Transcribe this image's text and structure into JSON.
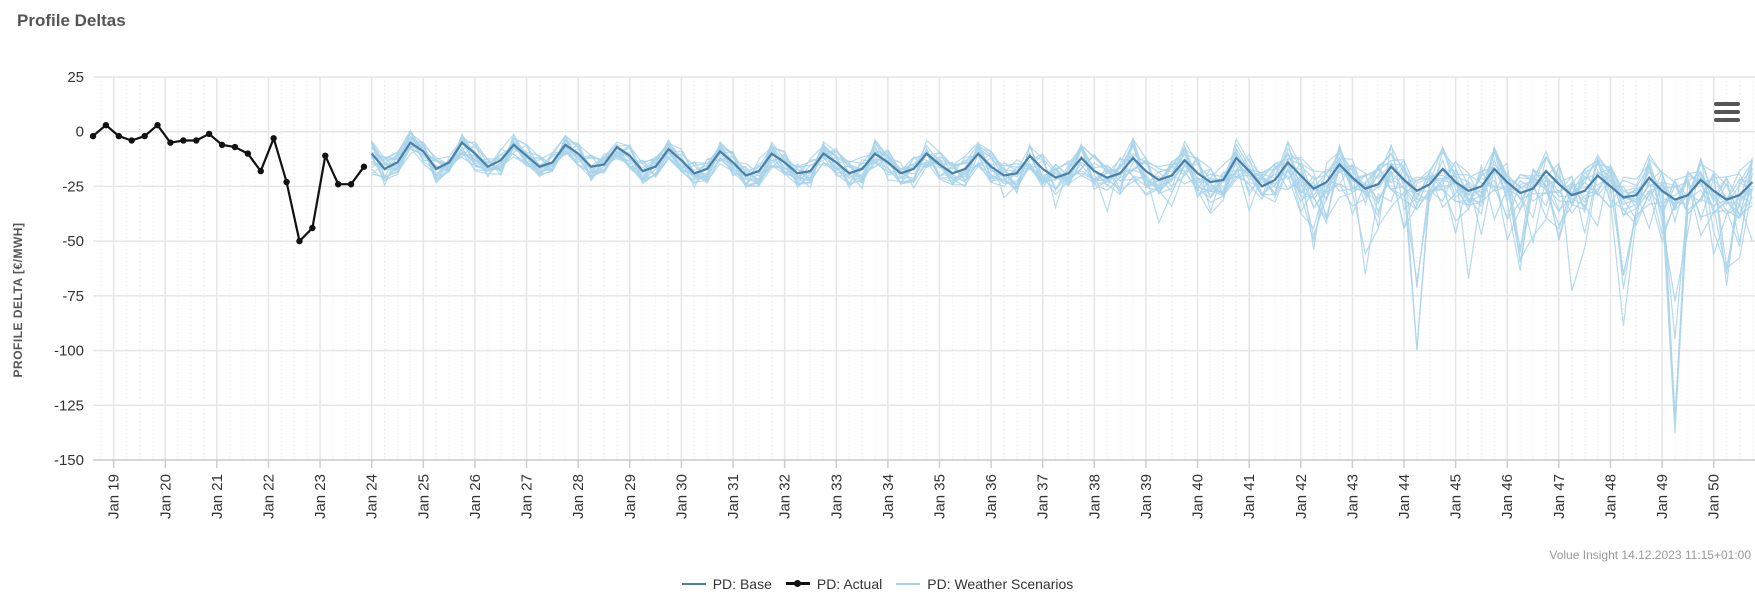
{
  "title": "Profile Deltas",
  "credits": "Volue Insight 14.12.2023 11:15+01:00",
  "menu_icon": "hamburger-menu-icon",
  "colors": {
    "base": "#4a7fa6",
    "actual": "#111111",
    "scenarios": "#a9d3ea",
    "grid": "#e6e6e6",
    "axis_label": "#555555"
  },
  "chart_data": {
    "type": "line",
    "title": "Profile Deltas",
    "xlabel": "",
    "ylabel": "PROFILE DELTA [€/MWH]",
    "ylim": [
      -150,
      25
    ],
    "yticks": [
      25,
      0,
      -25,
      -50,
      -75,
      -100,
      -125,
      -150
    ],
    "xlim": [
      18.6,
      50.8
    ],
    "xticks": [
      {
        "value": 19,
        "label": "Jan 19"
      },
      {
        "value": 20,
        "label": "Jan 20"
      },
      {
        "value": 21,
        "label": "Jan 21"
      },
      {
        "value": 22,
        "label": "Jan 22"
      },
      {
        "value": 23,
        "label": "Jan 23"
      },
      {
        "value": 24,
        "label": "Jan 24"
      },
      {
        "value": 25,
        "label": "Jan 25"
      },
      {
        "value": 26,
        "label": "Jan 26"
      },
      {
        "value": 27,
        "label": "Jan 27"
      },
      {
        "value": 28,
        "label": "Jan 28"
      },
      {
        "value": 29,
        "label": "Jan 29"
      },
      {
        "value": 30,
        "label": "Jan 30"
      },
      {
        "value": 31,
        "label": "Jan 31"
      },
      {
        "value": 32,
        "label": "Jan 32"
      },
      {
        "value": 33,
        "label": "Jan 33"
      },
      {
        "value": 34,
        "label": "Jan 34"
      },
      {
        "value": 35,
        "label": "Jan 35"
      },
      {
        "value": 36,
        "label": "Jan 36"
      },
      {
        "value": 37,
        "label": "Jan 37"
      },
      {
        "value": 38,
        "label": "Jan 38"
      },
      {
        "value": 39,
        "label": "Jan 39"
      },
      {
        "value": 40,
        "label": "Jan 40"
      },
      {
        "value": 41,
        "label": "Jan 41"
      },
      {
        "value": 42,
        "label": "Jan 42"
      },
      {
        "value": 43,
        "label": "Jan 43"
      },
      {
        "value": 44,
        "label": "Jan 44"
      },
      {
        "value": 45,
        "label": "Jan 45"
      },
      {
        "value": 46,
        "label": "Jan 46"
      },
      {
        "value": 47,
        "label": "Jan 47"
      },
      {
        "value": 48,
        "label": "Jan 48"
      },
      {
        "value": 49,
        "label": "Jan 49"
      },
      {
        "value": 50,
        "label": "Jan 50"
      }
    ],
    "grid": true,
    "legend": "bottom-center",
    "series": [
      {
        "name": "PD: Actual",
        "color": "#111111",
        "marker": "circle",
        "x": [
          18.6,
          18.85,
          19.1,
          19.35,
          19.6,
          19.85,
          20.1,
          20.35,
          20.6,
          20.85,
          21.1,
          21.35,
          21.6,
          21.85,
          22.1,
          22.35,
          22.6,
          22.85,
          23.1,
          23.35,
          23.6,
          23.85
        ],
        "y": [
          -2,
          3,
          -2,
          -4,
          -2,
          3,
          -5,
          -4,
          -4,
          -1,
          -6,
          -7,
          -10,
          -18,
          -3,
          -23,
          -50,
          -44,
          -11,
          -24,
          -24,
          -16
        ]
      },
      {
        "name": "PD: Base",
        "color": "#4a7fa6",
        "x_start": 24.0,
        "x_step": 0.25,
        "y": [
          -10,
          -17,
          -14,
          -5,
          -9,
          -17,
          -14,
          -5,
          -10,
          -16,
          -13,
          -6,
          -11,
          -16,
          -14,
          -6,
          -10,
          -16,
          -15,
          -7,
          -11,
          -18,
          -16,
          -8,
          -13,
          -19,
          -17,
          -9,
          -14,
          -20,
          -18,
          -10,
          -14,
          -19,
          -18,
          -10,
          -14,
          -19,
          -17,
          -10,
          -14,
          -19,
          -17,
          -10,
          -15,
          -19,
          -17,
          -10,
          -16,
          -20,
          -19,
          -11,
          -17,
          -21,
          -19,
          -12,
          -18,
          -21,
          -19,
          -12,
          -18,
          -22,
          -20,
          -13,
          -19,
          -23,
          -22,
          -12,
          -18,
          -25,
          -22,
          -14,
          -20,
          -26,
          -23,
          -15,
          -21,
          -26,
          -24,
          -16,
          -22,
          -27,
          -24,
          -17,
          -23,
          -27,
          -25,
          -17,
          -23,
          -28,
          -26,
          -18,
          -24,
          -29,
          -27,
          -20,
          -25,
          -30,
          -29,
          -21,
          -27,
          -31,
          -29,
          -22,
          -27,
          -31,
          -29,
          -23,
          -28,
          -32,
          -29,
          -23
        ],
        "y_note_hidden": ""
      },
      {
        "name": "PD: Weather Scenarios",
        "color": "#a9d3ea",
        "x_start": 24.0,
        "x_step": 0.25,
        "count": 20,
        "y_envelope_low": [
          -20,
          -26,
          -20,
          -12,
          -16,
          -24,
          -20,
          -12,
          -18,
          -23,
          -20,
          -12,
          -18,
          -24,
          -20,
          -12,
          -17,
          -24,
          -21,
          -13,
          -18,
          -26,
          -22,
          -14,
          -20,
          -27,
          -24,
          -15,
          -21,
          -28,
          -25,
          -17,
          -21,
          -28,
          -26,
          -17,
          -22,
          -29,
          -26,
          -18,
          -22,
          -29,
          -26,
          -18,
          -23,
          -30,
          -26,
          -18,
          -25,
          -32,
          -30,
          -20,
          -27,
          -35,
          -30,
          -22,
          -30,
          -40,
          -32,
          -24,
          -32,
          -48,
          -35,
          -26,
          -34,
          -38,
          -36,
          -26,
          -36,
          -58,
          -40,
          -30,
          -38,
          -60,
          -42,
          -33,
          -44,
          -90,
          -46,
          -36,
          -46,
          -100,
          -50,
          -38,
          -48,
          -75,
          -52,
          -40,
          -50,
          -72,
          -54,
          -42,
          -52,
          -80,
          -56,
          -44,
          -54,
          -102,
          -58,
          -46,
          -56,
          -138,
          -60,
          -48,
          -58,
          -95,
          -60,
          -50,
          -60,
          -95,
          -62,
          -50
        ],
        "y_envelope_high": [
          -2,
          -10,
          -6,
          3,
          -2,
          -10,
          -6,
          3,
          -3,
          -10,
          -6,
          2,
          -3,
          -9,
          -7,
          3,
          -2,
          -9,
          -7,
          2,
          -3,
          -10,
          -8,
          1,
          -4,
          -12,
          -9,
          0,
          -5,
          -13,
          -10,
          0,
          -5,
          -12,
          -10,
          0,
          -6,
          -12,
          -9,
          0,
          -6,
          -12,
          -9,
          0,
          -6,
          -12,
          -9,
          0,
          -7,
          -12,
          -10,
          -1,
          -8,
          -13,
          -11,
          -1,
          -8,
          -13,
          -10,
          -1,
          -8,
          -14,
          -11,
          -2,
          -9,
          -14,
          -12,
          -1,
          -8,
          -15,
          -12,
          -2,
          -9,
          -15,
          -12,
          -3,
          -10,
          -16,
          -13,
          -3,
          -10,
          -16,
          -13,
          -4,
          -11,
          -16,
          -13,
          -4,
          -11,
          -17,
          -14,
          -5,
          -12,
          -17,
          -14,
          -5,
          -12,
          -18,
          -15,
          -6,
          -13,
          -18,
          -15,
          -6,
          -13,
          -18,
          -15,
          -6,
          -13,
          -18,
          -15,
          -6
        ]
      }
    ]
  },
  "legend": {
    "items": [
      {
        "label": "PD: Base"
      },
      {
        "label": "PD: Actual"
      },
      {
        "label": "PD: Weather Scenarios"
      }
    ]
  }
}
